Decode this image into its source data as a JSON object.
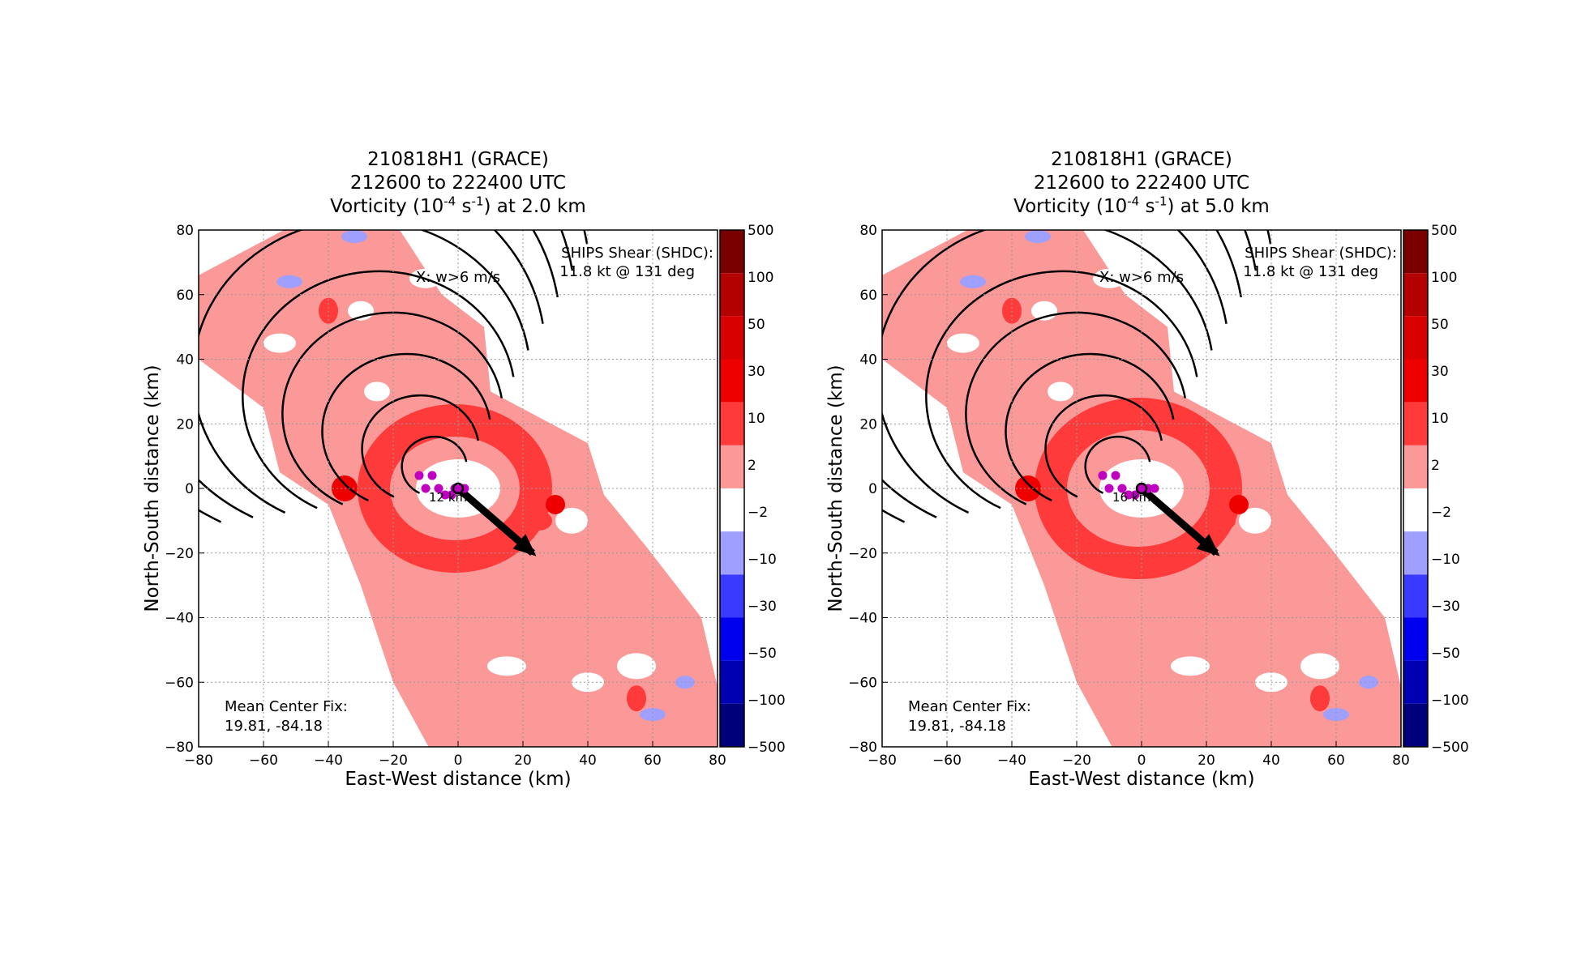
{
  "panels": [
    {
      "title_line1": "210818H1 (GRACE)",
      "title_line2": "212600 to 222400 UTC",
      "title_line3_pre": "Vorticity (10",
      "title_line3_exp": "-4",
      "title_line3_mid": " s",
      "title_line3_exp2": "-1",
      "title_line3_post": ") at 2.0 km",
      "shear_label": "SHIPS Shear (SHDC):",
      "shear_value": "11.8 kt @ 131 deg",
      "updraft_label": "X: w>6 m/s",
      "center_label": "Mean Center Fix:",
      "center_value": "19.81, -84.18",
      "radius_label": "12 km"
    },
    {
      "title_line1": "210818H1 (GRACE)",
      "title_line2": "212600 to 222400 UTC",
      "title_line3_pre": "Vorticity (10",
      "title_line3_exp": "-4",
      "title_line3_mid": " s",
      "title_line3_exp2": "-1",
      "title_line3_post": ") at 5.0 km",
      "shear_label": "SHIPS Shear (SHDC):",
      "shear_value": "11.8 kt @ 131 deg",
      "updraft_label": "X: w>6 m/s",
      "center_label": "Mean Center Fix:",
      "center_value": "19.81, -84.18",
      "radius_label": "16 km"
    }
  ],
  "chart_data": [
    {
      "type": "heatmap",
      "title": "210818H1 (GRACE) 212600 to 222400 UTC Vorticity (10-4 s-1) at 2.0 km",
      "xlabel": "East-West distance (km)",
      "ylabel": "North-South distance (km)",
      "xlim": [
        -80,
        80
      ],
      "ylim": [
        -80,
        80
      ],
      "xticks": [
        "−80",
        "−60",
        "−40",
        "−20",
        "0",
        "20",
        "40",
        "60",
        "80"
      ],
      "yticks": [
        "80",
        "60",
        "40",
        "20",
        "0",
        "−20",
        "−40",
        "−60",
        "−80"
      ],
      "grid": true,
      "center_fix": [
        19.81,
        -84.18
      ],
      "shear_kt": 11.8,
      "shear_dir_deg": 131,
      "shear_vector_end": [
        23,
        -20
      ],
      "height_km": 2.0,
      "radius_km": 12,
      "updraft_points": [
        [
          -12,
          4
        ],
        [
          -8,
          4
        ],
        [
          -10,
          0
        ],
        [
          -6,
          0
        ],
        [
          -4,
          -2
        ],
        [
          -2,
          -2
        ],
        [
          -1,
          0
        ],
        [
          1,
          0
        ],
        [
          2,
          0
        ]
      ]
    },
    {
      "type": "heatmap",
      "title": "210818H1 (GRACE) 212600 to 222400 UTC Vorticity (10-4 s-1) at 5.0 km",
      "xlabel": "East-West distance (km)",
      "ylabel": "North-South distance (km)",
      "xlim": [
        -80,
        80
      ],
      "ylim": [
        -80,
        80
      ],
      "xticks": [
        "−80",
        "−60",
        "−40",
        "−20",
        "0",
        "20",
        "40",
        "60",
        "80"
      ],
      "yticks": [
        "80",
        "60",
        "40",
        "20",
        "0",
        "−20",
        "−40",
        "−60",
        "−80"
      ],
      "grid": true,
      "center_fix": [
        19.81,
        -84.18
      ],
      "shear_kt": 11.8,
      "shear_dir_deg": 131,
      "shear_vector_end": [
        23,
        -20
      ],
      "height_km": 5.0,
      "radius_km": 16,
      "updraft_points": [
        [
          -12,
          4
        ],
        [
          -8,
          4
        ],
        [
          -10,
          0
        ],
        [
          -6,
          0
        ],
        [
          -4,
          -2
        ],
        [
          -2,
          -2
        ],
        [
          0,
          0
        ],
        [
          2,
          0
        ],
        [
          4,
          0
        ]
      ]
    }
  ],
  "colorbar": {
    "levels": [
      "500",
      "100",
      "50",
      "30",
      "10",
      "2",
      "−2",
      "−10",
      "−30",
      "−50",
      "−100",
      "−500"
    ],
    "colors": [
      "#7a0000",
      "#b30000",
      "#d80000",
      "#ee0000",
      "#ff3a3a",
      "#fb9898",
      "#ffffff",
      "#9f9fff",
      "#3a3aff",
      "#0000ee",
      "#0000b3",
      "#00007a"
    ]
  },
  "colors": {
    "light_red": "#fb9898",
    "mid_red": "#ff3a3a",
    "dark_red": "#ee0000",
    "light_blue": "#9f9fff",
    "mid_blue": "#3a3aff",
    "marker": "#c000c0"
  }
}
